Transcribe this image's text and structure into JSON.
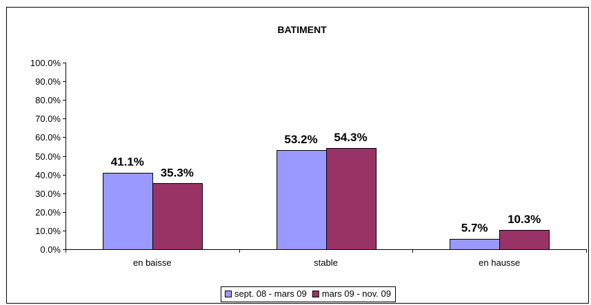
{
  "chart_data": {
    "type": "bar",
    "title": "BATIMENT",
    "categories": [
      "en baisse",
      "stable",
      "en hausse"
    ],
    "series": [
      {
        "name": "sept. 08 - mars 09",
        "values": [
          41.1,
          53.2,
          5.7
        ],
        "labels": [
          "41.1%",
          "53.2%",
          "5.7%"
        ],
        "color": "#9999FF"
      },
      {
        "name": "mars 09 - nov. 09",
        "values": [
          35.3,
          54.3,
          10.3
        ],
        "labels": [
          "35.3%",
          "54.3%",
          "10.3%"
        ],
        "color": "#993366"
      }
    ],
    "ylim": [
      0,
      100
    ],
    "y_ticks": [
      "0.0%",
      "10.0%",
      "20.0%",
      "30.0%",
      "40.0%",
      "50.0%",
      "60.0%",
      "70.0%",
      "80.0%",
      "90.0%",
      "100.0%"
    ],
    "grid": false,
    "legend_position": "bottom"
  }
}
